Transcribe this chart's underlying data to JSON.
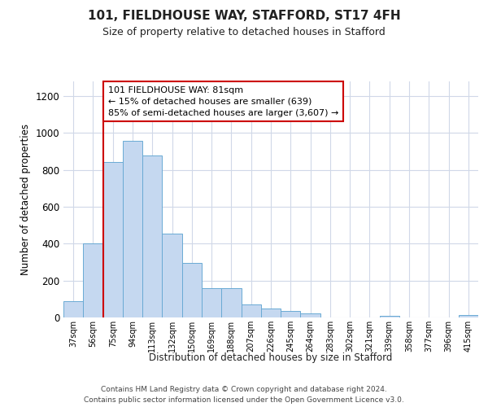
{
  "title": "101, FIELDHOUSE WAY, STAFFORD, ST17 4FH",
  "subtitle": "Size of property relative to detached houses in Stafford",
  "xlabel": "Distribution of detached houses by size in Stafford",
  "ylabel": "Number of detached properties",
  "categories": [
    "37sqm",
    "56sqm",
    "75sqm",
    "94sqm",
    "113sqm",
    "132sqm",
    "150sqm",
    "169sqm",
    "188sqm",
    "207sqm",
    "226sqm",
    "245sqm",
    "264sqm",
    "283sqm",
    "302sqm",
    "321sqm",
    "339sqm",
    "358sqm",
    "377sqm",
    "396sqm",
    "415sqm"
  ],
  "values": [
    90,
    400,
    845,
    960,
    880,
    455,
    295,
    160,
    160,
    70,
    50,
    35,
    20,
    0,
    0,
    0,
    10,
    0,
    0,
    0,
    12
  ],
  "bar_color": "#c5d8f0",
  "bar_edge_color": "#6aaad4",
  "vline_color": "#cc0000",
  "vline_index": 2,
  "annotation_text": "101 FIELDHOUSE WAY: 81sqm\n← 15% of detached houses are smaller (639)\n85% of semi-detached houses are larger (3,607) →",
  "ylim": [
    0,
    1280
  ],
  "yticks": [
    0,
    200,
    400,
    600,
    800,
    1000,
    1200
  ],
  "footer1": "Contains HM Land Registry data © Crown copyright and database right 2024.",
  "footer2": "Contains public sector information licensed under the Open Government Licence v3.0.",
  "bg_color": "#ffffff",
  "plot_bg_color": "#ffffff",
  "grid_color": "#d0d8e8"
}
